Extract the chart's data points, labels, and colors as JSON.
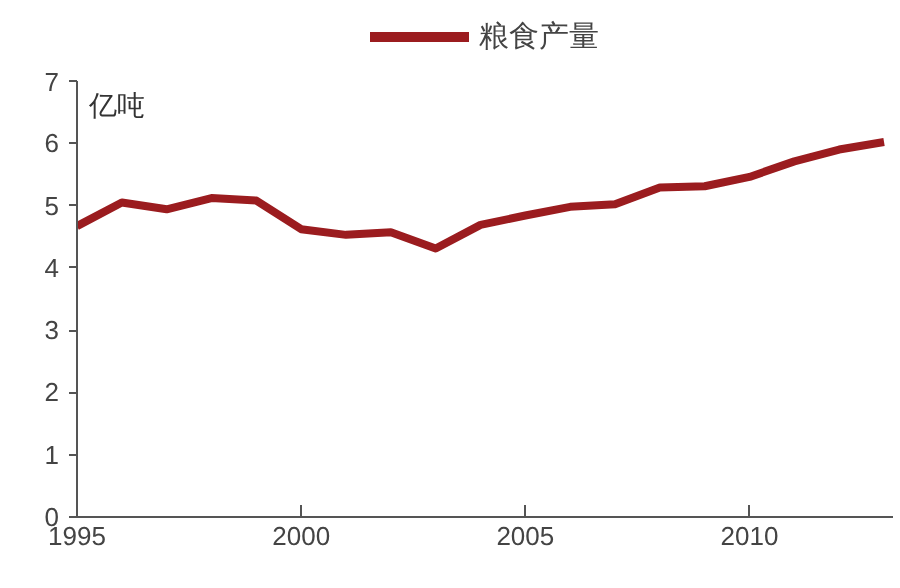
{
  "chart_data": {
    "type": "line",
    "ylabel": "亿吨",
    "x": [
      1995,
      1996,
      1997,
      1998,
      1999,
      2000,
      2001,
      2002,
      2003,
      2004,
      2005,
      2006,
      2007,
      2008,
      2009,
      2010,
      2011,
      2012,
      2013
    ],
    "series": [
      {
        "name": "粮食产量",
        "color": "#9b1c1f",
        "values": [
          4.67,
          5.05,
          4.94,
          5.12,
          5.08,
          4.62,
          4.53,
          4.57,
          4.31,
          4.69,
          4.84,
          4.98,
          5.02,
          5.29,
          5.31,
          5.46,
          5.71,
          5.9,
          6.02
        ]
      }
    ],
    "xlim": [
      1995,
      2013.2
    ],
    "xticks": [
      1995,
      2000,
      2005,
      2010
    ],
    "ylim": [
      0,
      7
    ],
    "yticks": [
      0,
      1,
      2,
      3,
      4,
      5,
      6,
      7
    ],
    "grid": false,
    "legend": "top",
    "marker": "none",
    "line_style": "solid"
  }
}
